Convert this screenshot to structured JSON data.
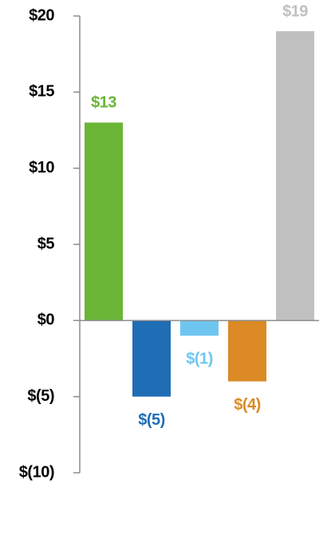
{
  "chart_data": {
    "type": "bar",
    "values": [
      13,
      -5,
      -1,
      -4,
      19
    ],
    "value_labels": [
      "$13",
      "$(5)",
      "$(1)",
      "$(4)",
      "$19"
    ],
    "colors": [
      "#6ab536",
      "#1f6db5",
      "#6ec6f0",
      "#db8a26",
      "#c0c0c0"
    ],
    "ylim": [
      -10,
      20
    ],
    "yticks": [
      {
        "value": -10,
        "label": "$(10)"
      },
      {
        "value": -5,
        "label": "$(5)"
      },
      {
        "value": 0,
        "label": "$0"
      },
      {
        "value": 5,
        "label": "$5"
      },
      {
        "value": 10,
        "label": "$10"
      },
      {
        "value": 15,
        "label": "$15"
      },
      {
        "value": 20,
        "label": "$20"
      }
    ],
    "grid": false
  }
}
